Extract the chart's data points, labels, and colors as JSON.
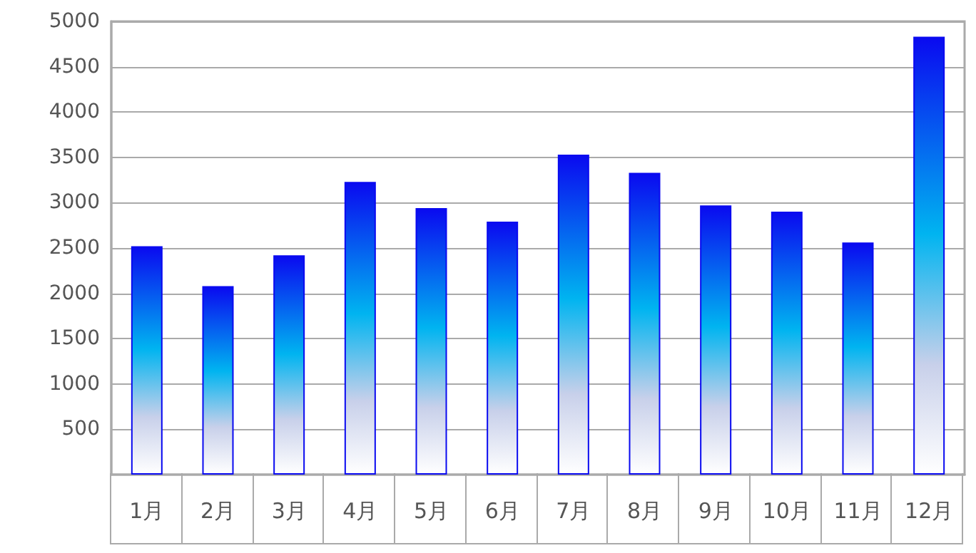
{
  "chart_data": {
    "type": "bar",
    "categories": [
      "1月",
      "2月",
      "3月",
      "4月",
      "5月",
      "6月",
      "7月",
      "8月",
      "9月",
      "10月",
      "11月",
      "12月"
    ],
    "values": [
      2520,
      2080,
      2420,
      3230,
      2940,
      2790,
      3530,
      3330,
      2970,
      2900,
      2560,
      4830
    ],
    "color": "#0a0af0",
    "ylim": [
      0,
      5000
    ],
    "yticks": [
      500,
      1000,
      1500,
      2000,
      2500,
      3000,
      3500,
      4000,
      4500,
      5000
    ],
    "grid": "y"
  }
}
